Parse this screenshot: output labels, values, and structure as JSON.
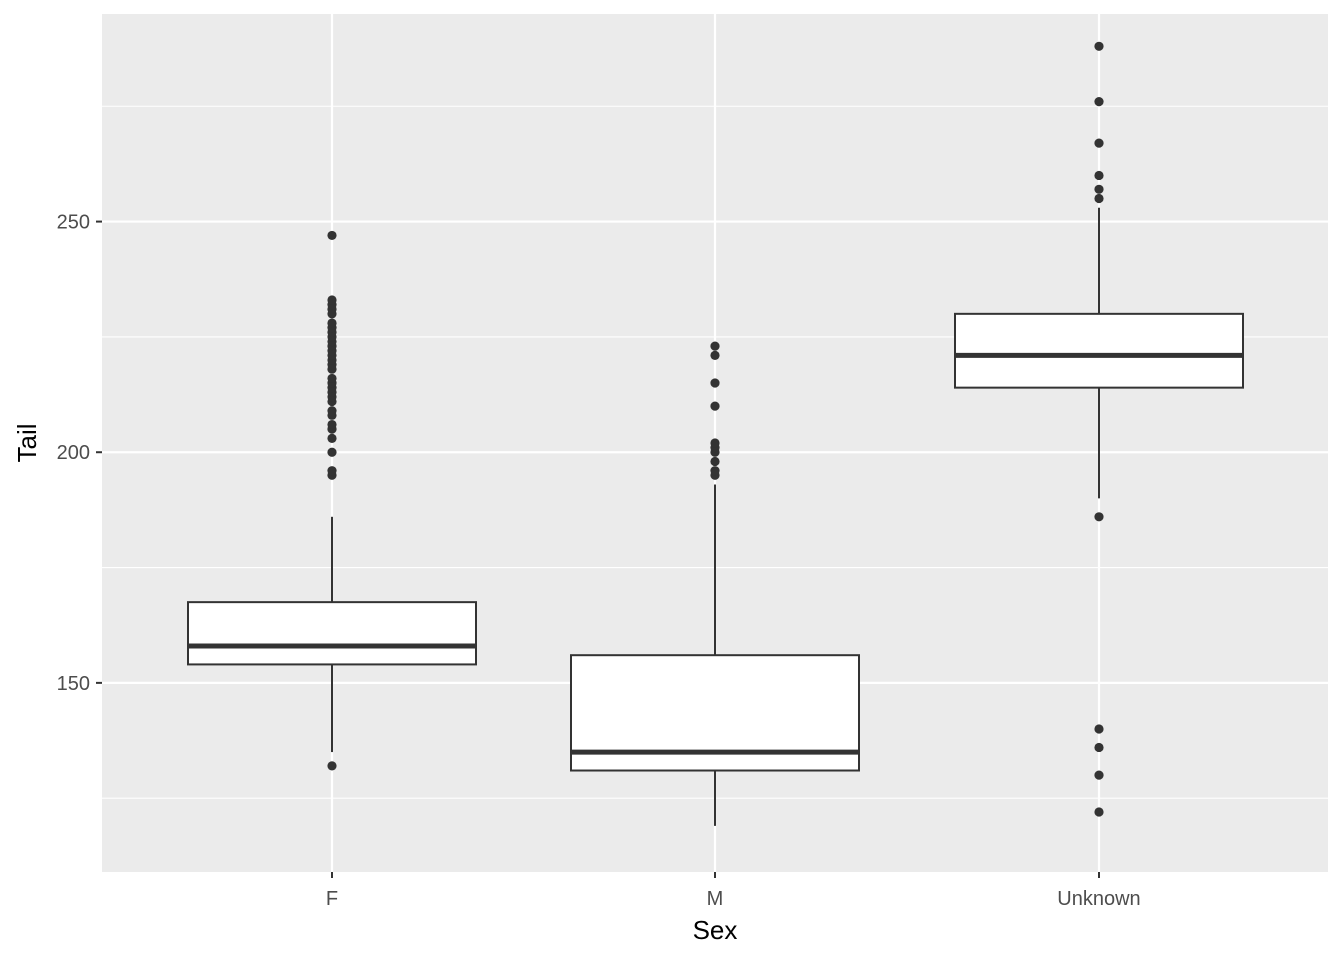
{
  "chart_data": {
    "type": "box",
    "xlabel": "Sex",
    "ylabel": "Tail",
    "categories": [
      "F",
      "M",
      "Unknown"
    ],
    "yticks": [
      150,
      200,
      250
    ],
    "ylim": [
      109,
      295
    ],
    "grid": true,
    "legend": "none",
    "colors": {
      "panel": "#ebebeb",
      "grid_major": "#ffffff",
      "box_fill": "#ffffff",
      "box_line": "#333333",
      "point": "#333333",
      "tick_label": "#4d4d4d",
      "axis_title": "#000000"
    },
    "boxes": [
      {
        "category": "F",
        "q1": 154,
        "median": 158,
        "q3": 167.5,
        "whisker_low": 135,
        "whisker_high": 186,
        "outliers": [
          132,
          195,
          196,
          200,
          203,
          205,
          206,
          208,
          209,
          211,
          212,
          213,
          214,
          215,
          216,
          218,
          219,
          220,
          221,
          222,
          223,
          224,
          225,
          226,
          227,
          228,
          230,
          231,
          232,
          233,
          247
        ]
      },
      {
        "category": "M",
        "q1": 131,
        "median": 135,
        "q3": 156,
        "whisker_low": 119,
        "whisker_high": 193,
        "outliers": [
          195,
          196,
          198,
          200,
          201,
          202,
          210,
          215,
          221,
          223
        ]
      },
      {
        "category": "Unknown",
        "q1": 214,
        "median": 221,
        "q3": 230,
        "whisker_low": 190,
        "whisker_high": 253,
        "outliers": [
          122,
          130,
          136,
          140,
          186,
          255,
          257,
          260,
          267,
          276,
          288
        ]
      }
    ]
  }
}
